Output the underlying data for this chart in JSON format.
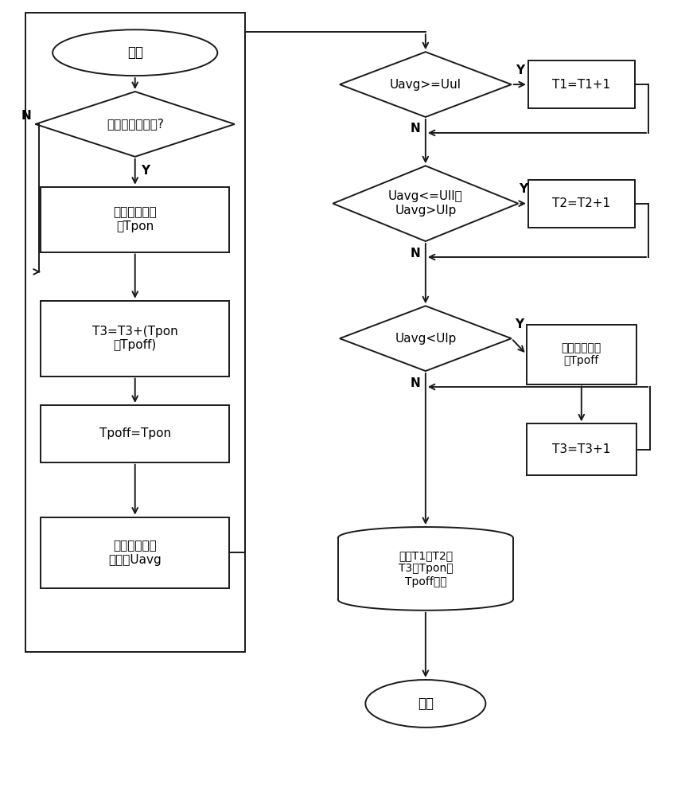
{
  "bg_color": "#ffffff",
  "line_color": "#1a1a1a",
  "text_color": "#000000",
  "lw": 1.4,
  "fig_w": 8.66,
  "fig_h": 10.0,
  "dpi": 100,
  "left": {
    "border": [
      0.035,
      0.18,
      0.355,
      0.985
    ],
    "oval_start": [
      0.195,
      0.935,
      0.24,
      0.058,
      "开始"
    ],
    "diamond1": [
      0.195,
      0.845,
      0.29,
      0.082,
      "是否停电后复电?"
    ],
    "rect1": [
      0.195,
      0.725,
      0.275,
      0.082,
      "读取当前时间\n到Tpon"
    ],
    "rect2": [
      0.195,
      0.575,
      0.275,
      0.095,
      "T3=T3+(Tpon\n－Tpoff)"
    ],
    "rect3": [
      0.195,
      0.455,
      0.275,
      0.072,
      "Tpoff=Tpon"
    ],
    "rect4": [
      0.195,
      0.305,
      0.275,
      0.09,
      "读取分钟电压\n平均値Uavg"
    ]
  },
  "right": {
    "diamond2": [
      0.618,
      0.895,
      0.25,
      0.082,
      "Uavg>=Uul"
    ],
    "rect_t1": [
      0.845,
      0.895,
      0.155,
      0.06,
      "T1=T1+1"
    ],
    "diamond3": [
      0.618,
      0.745,
      0.27,
      0.095,
      "Uavg<=Ull且\nUavg>Ulp"
    ],
    "rect_t2": [
      0.845,
      0.745,
      0.155,
      0.06,
      "T2=T2+1"
    ],
    "diamond4": [
      0.618,
      0.575,
      0.25,
      0.082,
      "Uavg<Ulp"
    ],
    "rect_tpoff": [
      0.845,
      0.555,
      0.16,
      0.075,
      "读取系统时间\n到Tpoff"
    ],
    "rect_t3": [
      0.845,
      0.435,
      0.16,
      0.065,
      "T3=T3+1"
    ],
    "tape": [
      0.618,
      0.285,
      0.255,
      0.105,
      "存储T1、T2、\nT3、Tpon、\nTpoff数据"
    ],
    "oval_end": [
      0.618,
      0.115,
      0.175,
      0.06,
      "结束"
    ]
  }
}
